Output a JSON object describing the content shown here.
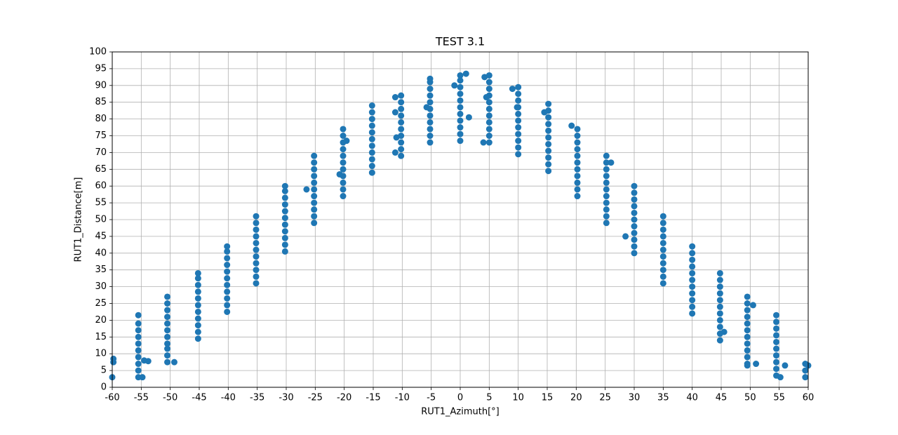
{
  "chart_data": {
    "type": "scatter",
    "title": "TEST 3.1",
    "x_label": "RUT1_Azimuth[°]",
    "y_label": "RUT1_Distance[m]",
    "color": "#1f77b4",
    "grid": true,
    "xlim": [
      -60,
      60
    ],
    "ylim": [
      0,
      100
    ],
    "xticks": [
      -60,
      -55,
      -50,
      -45,
      -40,
      -35,
      -30,
      -25,
      -20,
      -15,
      -10,
      -5,
      0,
      5,
      10,
      15,
      20,
      25,
      30,
      35,
      40,
      45,
      50,
      55,
      60
    ],
    "yticks": [
      0,
      5,
      10,
      15,
      20,
      25,
      30,
      35,
      40,
      45,
      50,
      55,
      60,
      65,
      70,
      75,
      80,
      85,
      90,
      95,
      100
    ],
    "x": [
      -59.8,
      -59.8,
      -60,
      -55.5,
      -55.5,
      -55.5,
      -55.5,
      -55.5,
      -55.5,
      -55.5,
      -55.5,
      -55.5,
      -55.5,
      -54.5,
      -53.8,
      -54.8,
      -50.5,
      -50.5,
      -50.5,
      -50.5,
      -50.5,
      -50.5,
      -50.5,
      -50.5,
      -50.5,
      -50.5,
      -50.5,
      -49.3,
      -45.2,
      -45.2,
      -45.2,
      -45.2,
      -45.2,
      -45.2,
      -45.2,
      -45.2,
      -45.2,
      -45.2,
      -45.2,
      -40.2,
      -40.2,
      -40.2,
      -40.2,
      -40.2,
      -40.2,
      -40.2,
      -40.2,
      -40.2,
      -40.2,
      -40.2,
      -35.2,
      -35.2,
      -35.2,
      -35.2,
      -35.2,
      -35.2,
      -35.2,
      -35.2,
      -35.2,
      -35.2,
      -35.2,
      -30.2,
      -30.2,
      -30.2,
      -30.2,
      -30.2,
      -30.2,
      -30.2,
      -30.2,
      -30.2,
      -30.2,
      -30.2,
      -25.2,
      -25.2,
      -25.2,
      -25.2,
      -25.2,
      -25.2,
      -25.2,
      -25.2,
      -25.2,
      -25.2,
      -25.2,
      -26.5,
      -20.2,
      -20.2,
      -20.2,
      -20.2,
      -20.2,
      -20.2,
      -20.2,
      -20.2,
      -20.2,
      -20.2,
      -20.2,
      -20.8,
      -19.6,
      -15.2,
      -15.2,
      -15.2,
      -15.2,
      -15.2,
      -15.2,
      -15.2,
      -15.2,
      -15.2,
      -15.2,
      -15.2,
      -10.2,
      -10.2,
      -10.2,
      -10.2,
      -10.2,
      -10.2,
      -10.2,
      -10.2,
      -10.2,
      -10.2,
      -11.2,
      -11.2,
      -11.2,
      -11,
      -5.2,
      -5.2,
      -5.2,
      -5.2,
      -5.2,
      -5.2,
      -5.2,
      -5.2,
      -5.2,
      -5.2,
      -5.2,
      -5.8,
      0,
      0,
      0,
      0,
      0,
      0,
      0,
      0,
      0,
      0,
      0,
      -1,
      1,
      1.5,
      5,
      5,
      5,
      5,
      5,
      5,
      5,
      5,
      5,
      5,
      5,
      4.2,
      4.5,
      4,
      10,
      10,
      10,
      10,
      10,
      10,
      10,
      10,
      10,
      10,
      10,
      9,
      9.8,
      15.2,
      15.2,
      15.2,
      15.2,
      15.2,
      15.2,
      15.2,
      15.2,
      15.2,
      15.2,
      15.2,
      14.5,
      20.2,
      20.2,
      20.2,
      20.2,
      20.2,
      20.2,
      20.2,
      20.2,
      20.2,
      20.2,
      20.2,
      19.2,
      25.2,
      25.2,
      25.2,
      25.2,
      25.2,
      25.2,
      25.2,
      25.2,
      25.2,
      25.2,
      25.2,
      26,
      30,
      30,
      30,
      30,
      30,
      30,
      30,
      30,
      30,
      30,
      30,
      28.5,
      35,
      35,
      35,
      35,
      35,
      35,
      35,
      35,
      35,
      35,
      35,
      40,
      40,
      40,
      40,
      40,
      40,
      40,
      40,
      40,
      40,
      40,
      44.8,
      44.8,
      44.8,
      44.8,
      44.8,
      44.8,
      44.8,
      44.8,
      44.8,
      44.8,
      44.8,
      45.5,
      49.5,
      49.5,
      49.5,
      49.5,
      49.5,
      49.5,
      49.5,
      49.5,
      49.5,
      49.5,
      49.5,
      49.5,
      50.5,
      51,
      54.5,
      54.5,
      54.5,
      54.5,
      54.5,
      54.5,
      54.5,
      54.5,
      54.5,
      54.5,
      55.2,
      56,
      59.5,
      59.5,
      59.5,
      60
    ],
    "values": [
      7.5,
      8.5,
      3,
      3,
      5,
      7,
      9,
      11,
      13,
      15,
      17,
      19,
      21.5,
      8,
      7.8,
      3,
      7.5,
      9.5,
      11.5,
      13,
      15,
      17,
      19,
      21,
      23,
      25,
      27,
      7.5,
      14.5,
      16.5,
      18.5,
      20.5,
      22.5,
      24.5,
      26.5,
      28.5,
      30.5,
      32.5,
      34,
      22.5,
      24.5,
      26.5,
      28.5,
      30.5,
      32.5,
      34.5,
      36.5,
      38.5,
      40.5,
      42,
      31,
      33,
      35,
      37,
      39,
      41,
      43,
      45,
      47,
      49,
      51,
      40.5,
      42.5,
      44.5,
      46.5,
      48.5,
      50.5,
      52.5,
      54.5,
      56.5,
      58.5,
      60,
      49,
      51,
      53,
      55,
      57,
      59,
      61,
      63,
      65,
      67,
      69,
      59,
      57,
      59,
      61,
      63,
      65,
      67,
      69,
      71,
      73,
      75,
      77,
      63.5,
      73.5,
      64,
      66,
      68,
      70,
      72,
      74,
      76,
      78,
      80,
      82,
      84,
      69,
      71,
      73,
      75,
      77,
      79,
      81,
      83,
      85,
      87,
      86.5,
      82,
      70,
      74.5,
      73,
      75,
      77,
      79,
      81,
      83,
      85,
      87,
      89,
      91,
      92,
      83.5,
      73.5,
      75.5,
      77.5,
      79.5,
      81.5,
      83.5,
      85.5,
      87.5,
      89.5,
      91.5,
      93,
      90,
      93.5,
      80.5,
      73,
      75,
      77,
      79,
      81,
      83,
      85,
      87,
      89,
      91,
      93,
      92.5,
      86.5,
      73,
      69.5,
      71.5,
      73.5,
      75.5,
      77.5,
      79.5,
      81.5,
      83.5,
      85.5,
      87.5,
      89.5,
      89,
      83.5,
      64.5,
      66.5,
      68.5,
      70.5,
      72.5,
      74.5,
      76.5,
      78.5,
      80.5,
      82.5,
      84.5,
      82,
      57,
      59,
      61,
      63,
      65,
      67,
      69,
      71,
      73,
      75,
      77,
      78,
      49,
      51,
      53,
      55,
      57,
      59,
      61,
      63,
      65,
      67,
      69,
      67,
      40,
      42,
      44,
      46,
      48,
      50,
      52,
      54,
      56,
      58,
      60,
      45,
      31,
      33,
      35,
      37,
      39,
      41,
      43,
      45,
      47,
      49,
      51,
      22,
      24,
      26,
      28,
      30,
      32,
      34,
      36,
      38,
      40,
      42,
      14,
      16,
      18,
      20,
      22,
      24,
      26,
      28,
      30,
      32,
      34,
      16.5,
      6.5,
      7,
      9,
      11,
      13,
      15,
      17,
      19,
      21,
      23,
      25,
      27,
      24.5,
      7,
      3.5,
      5.5,
      7.5,
      9.5,
      11.5,
      13.5,
      15.5,
      17.5,
      19.5,
      21.5,
      3,
      6.5,
      3,
      5,
      7,
      6.5
    ]
  }
}
